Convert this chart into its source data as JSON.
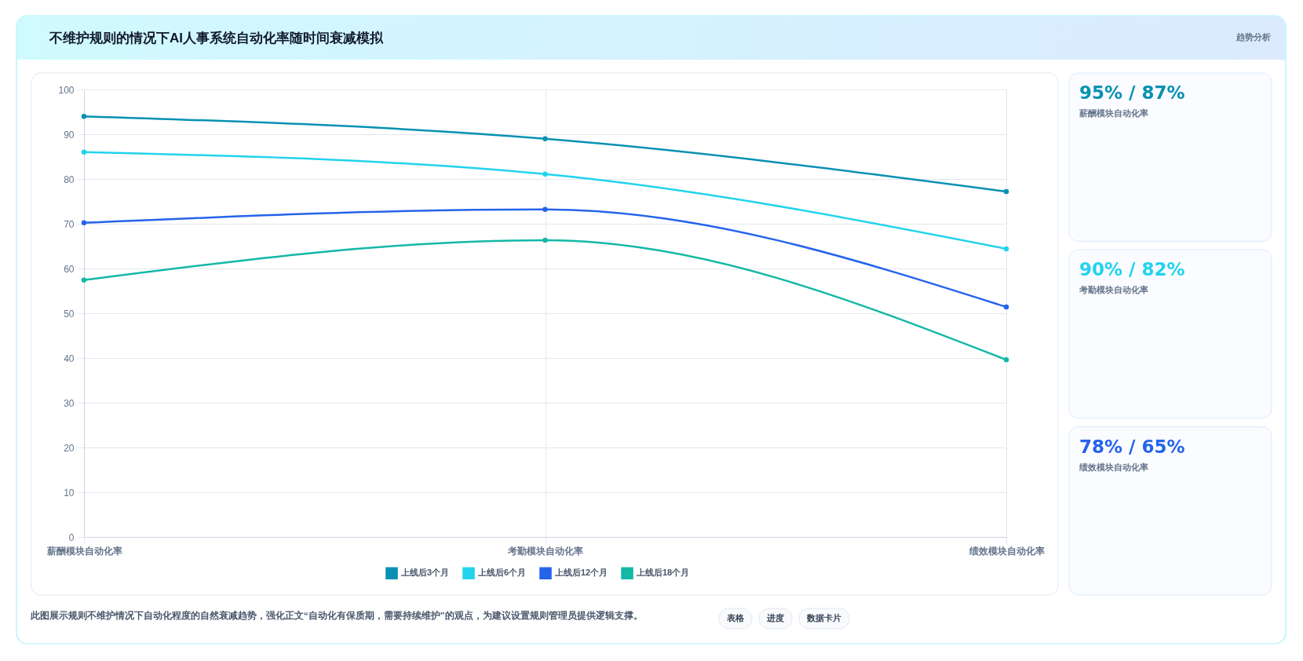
{
  "chart_data": [
    {
      "type": "line",
      "title": "不维护规则的情况下AI人事系统自动化率随时间衰减模拟",
      "categories": [
        "薪酬模块自动化率",
        "考勤模块自动化率",
        "绩效模块自动化率"
      ],
      "series": [
        {
          "name": "上线后3个月",
          "color": "#0891b2",
          "values": [
            94,
            89,
            77.2
          ]
        },
        {
          "name": "上线后6个月",
          "color": "#22d3ee",
          "values": [
            86,
            81.1,
            64.4
          ]
        },
        {
          "name": "上线后12个月",
          "color": "#2563eb",
          "values": [
            70.2,
            73.2,
            51.4
          ]
        },
        {
          "name": "上线后18个月",
          "color": "#14b8a6",
          "values": [
            57.4,
            66.3,
            39.6
          ]
        }
      ],
      "ylim": [
        0,
        100
      ],
      "yticks": [
        0,
        10,
        20,
        30,
        40,
        50,
        60,
        70,
        80,
        90,
        100
      ],
      "grid": true,
      "legend": "bottom",
      "marker": "circle",
      "line_style": "solid",
      "annotations": [
        "趋势分析",
        "此图展示规则不维护情况下自动化程度的自然衰减趋势，强化正文“自动化有保质期，需要持续维护”的观点，为建议设置规则管理员提供逻辑支撑。",
        "表格",
        "进度",
        "数据卡片"
      ]
    },
    {
      "type": "other",
      "annotations": [
        "95% / 87%",
        "薪酬模块自动化率",
        "90% / 82%",
        "考勤模块自动化率",
        "78% / 65%",
        "绩效模块自动化率"
      ],
      "colors": [
        "#0891b2",
        "#22d3ee",
        "#2563eb"
      ]
    }
  ]
}
